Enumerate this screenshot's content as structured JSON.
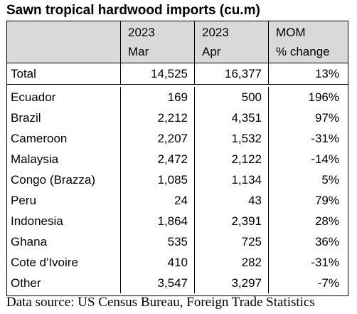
{
  "title": "Sawn tropical hardwood imports (cu.m)",
  "chart_data": {
    "type": "table",
    "columns": [
      {
        "line1": "2023",
        "line2": "Mar"
      },
      {
        "line1": "2023",
        "line2": "Apr"
      },
      {
        "line1": "MOM",
        "line2": "% change"
      }
    ],
    "total": {
      "label": "Total",
      "mar": "14,525",
      "apr": "16,377",
      "mom": "13%"
    },
    "rows": [
      {
        "label": "Ecuador",
        "mar": "169",
        "apr": "500",
        "mom": "196%"
      },
      {
        "label": "Brazil",
        "mar": "2,212",
        "apr": "4,351",
        "mom": "97%"
      },
      {
        "label": "Cameroon",
        "mar": "2,207",
        "apr": "1,532",
        "mom": "-31%"
      },
      {
        "label": "Malaysia",
        "mar": "2,472",
        "apr": "2,122",
        "mom": "-14%"
      },
      {
        "label": "Congo (Brazza)",
        "mar": "1,085",
        "apr": "1,134",
        "mom": "5%"
      },
      {
        "label": "Peru",
        "mar": "24",
        "apr": "43",
        "mom": "79%"
      },
      {
        "label": "Indonesia",
        "mar": "1,864",
        "apr": "2,391",
        "mom": "28%"
      },
      {
        "label": "Ghana",
        "mar": "535",
        "apr": "725",
        "mom": "36%"
      },
      {
        "label": "Cote d'Ivoire",
        "mar": "410",
        "apr": "282",
        "mom": "-31%"
      },
      {
        "label": "Other",
        "mar": "3,547",
        "apr": "3,297",
        "mom": "-7%"
      }
    ]
  },
  "source": "Data source: US Census Bureau, Foreign Trade Statistics",
  "colors": {
    "header_bg": "#d9d9d9",
    "border": "#000000"
  }
}
